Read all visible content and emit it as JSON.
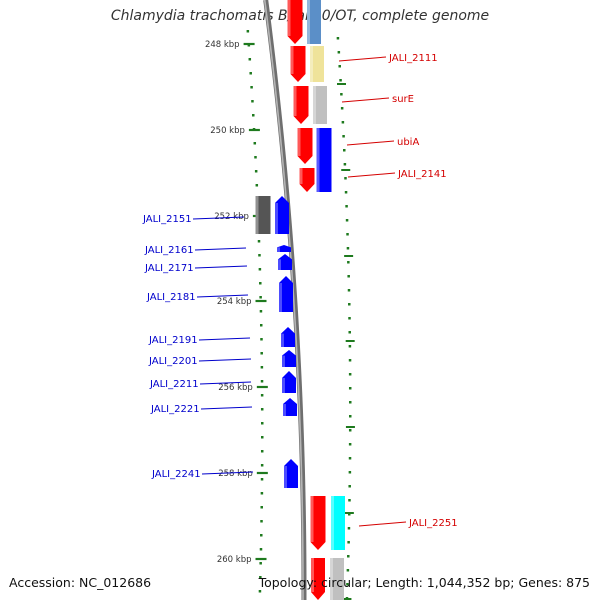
{
  "title": "Chlamydia trachomatis B/Jali20/OT, complete genome",
  "accession_text": "Accession: NC_012686",
  "summary_text": "Topology: circular; Length: 1,044,352 bp; Genes: 875",
  "colors": {
    "backbone": "#8a8a8a",
    "scale": "#1e7a1e",
    "red_gene": "#ff0000",
    "blue_gene": "#0000ff",
    "right_label": "#d40000",
    "left_label": "#0000cc"
  },
  "scale_ticks": [
    {
      "label": "248 kbp"
    },
    {
      "label": "250 kbp"
    },
    {
      "label": "252 kbp"
    },
    {
      "label": "254 kbp"
    },
    {
      "label": "256 kbp"
    },
    {
      "label": "258 kbp"
    },
    {
      "label": "260 kbp"
    }
  ],
  "right_genes": [
    {
      "label": "JALI_2111",
      "cog_color": "#efe39a"
    },
    {
      "label": "surE",
      "cog_color": "#c0c0c0"
    },
    {
      "label": "ubiA",
      "cog_color": "#0000ff"
    },
    {
      "label": "JALI_2141",
      "cog_color": ""
    },
    {
      "label": "JALI_2251",
      "cog_color": "#00ffff"
    }
  ],
  "left_genes": [
    {
      "label": "JALI_2151",
      "cog_color": "#555555"
    },
    {
      "label": "JALI_2161"
    },
    {
      "label": "JALI_2171"
    },
    {
      "label": "JALI_2181"
    },
    {
      "label": "JALI_2191"
    },
    {
      "label": "JALI_2201"
    },
    {
      "label": "JALI_2211"
    },
    {
      "label": "JALI_2221"
    },
    {
      "label": "JALI_2241"
    }
  ]
}
